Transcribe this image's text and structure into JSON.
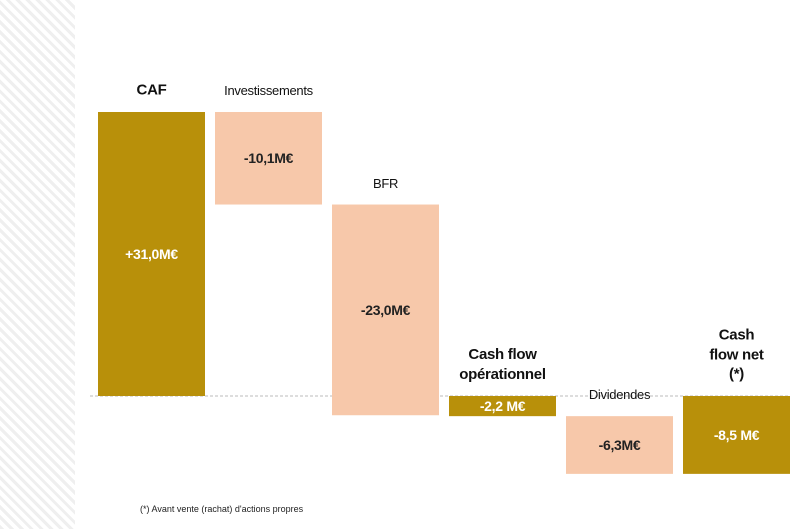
{
  "chart_data": {
    "type": "waterfall",
    "categories": [
      "CAF",
      "Investissements",
      "BFR",
      "Cash flow opérationnel",
      "Dividendes",
      "Cash flow net (*)"
    ],
    "values": [
      31.0,
      -10.1,
      -23.0,
      -2.2,
      -6.3,
      -8.5
    ],
    "value_labels": [
      "+31,0M€",
      "-10,1M€",
      "-23,0M€",
      "-2,2 M€",
      "-6,3M€",
      "-8,5 M€"
    ],
    "is_total": [
      true,
      false,
      false,
      true,
      false,
      true
    ],
    "color_total": "#b8900a",
    "color_delta": "#f7c8aa",
    "footnote": "(*) Avant vente (rachat) d'actions propres"
  }
}
